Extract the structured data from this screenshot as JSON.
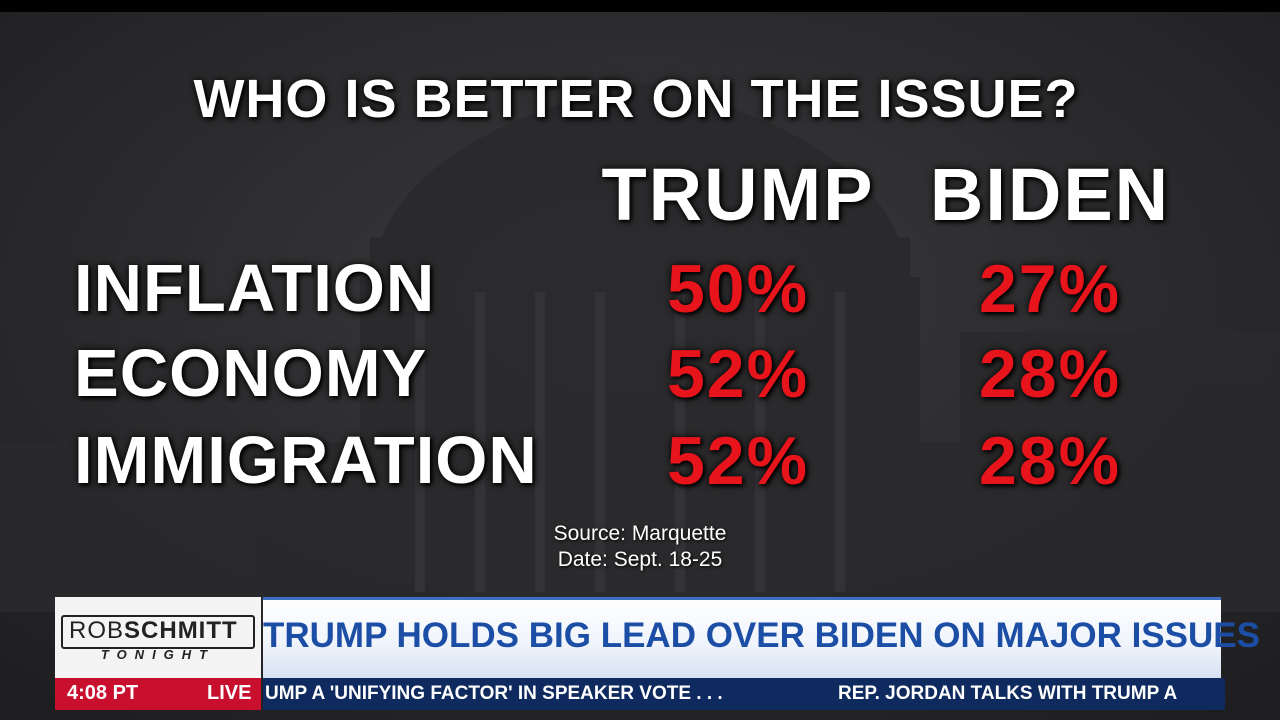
{
  "graphic": {
    "title": "WHO IS BETTER ON THE ISSUE?",
    "columns": [
      "TRUMP",
      "BIDEN"
    ],
    "rows": [
      {
        "label": "INFLATION",
        "values": [
          "50%",
          "27%"
        ]
      },
      {
        "label": "ECONOMY",
        "values": [
          "52%",
          "28%"
        ]
      },
      {
        "label": "IMMIGRATION",
        "values": [
          "52%",
          "28%"
        ]
      }
    ],
    "source": "Source: Marquette",
    "date": "Date: Sept. 18-25"
  },
  "lower_third": {
    "logo": {
      "name_light": "ROB",
      "name_bold": "SCHMITT",
      "tagline": "TONIGHT"
    },
    "headline": "TRUMP HOLDS BIG LEAD OVER BIDEN ON MAJOR ISSUES",
    "time": "4:08 PT",
    "live": "LIVE",
    "ticker": [
      "UMP A 'UNIFYING FACTOR' IN SPEAKER VOTE . . .",
      "REP. JORDAN TALKS WITH TRUMP A"
    ]
  }
}
